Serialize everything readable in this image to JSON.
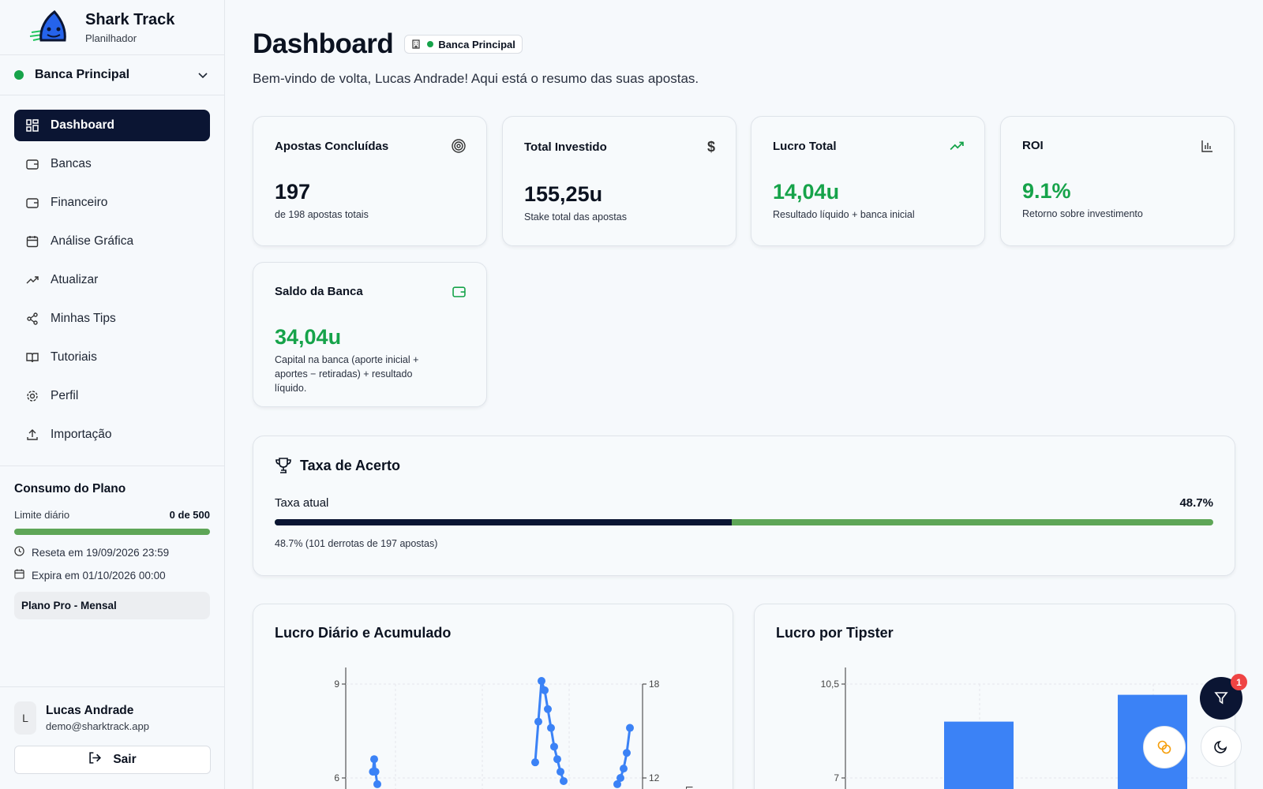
{
  "brand": {
    "name": "Shark Track",
    "subtitle": "Planilhador"
  },
  "bank_selector": {
    "label": "Banca Principal",
    "status_color": "#16a34a"
  },
  "nav": {
    "items": [
      {
        "label": "Dashboard",
        "icon": "grid-icon",
        "active": true
      },
      {
        "label": "Bancas",
        "icon": "wallet-icon"
      },
      {
        "label": "Financeiro",
        "icon": "wallet-icon"
      },
      {
        "label": "Análise Gráfica",
        "icon": "calendar-icon"
      },
      {
        "label": "Atualizar",
        "icon": "trending-up-icon"
      },
      {
        "label": "Minhas Tips",
        "icon": "share-icon"
      },
      {
        "label": "Tutoriais",
        "icon": "book-icon"
      },
      {
        "label": "Perfil",
        "icon": "gear-icon"
      },
      {
        "label": "Importação",
        "icon": "upload-icon"
      }
    ]
  },
  "plan": {
    "title": "Consumo do Plano",
    "limit_label": "Limite diário",
    "limit_value": "0 de 500",
    "reset_text": "Reseta em 19/09/2026 23:59",
    "expire_text": "Expira em 01/10/2026 00:00",
    "plan_name": "Plano Pro - Mensal"
  },
  "user": {
    "initial": "L",
    "name": "Lucas Andrade",
    "email": "demo@sharktrack.app",
    "logout_label": "Sair"
  },
  "header": {
    "title": "Dashboard",
    "bank_chip": "Banca Principal",
    "welcome": "Bem-vindo de volta, Lucas Andrade! Aqui está o resumo das suas apostas."
  },
  "stats": [
    {
      "title": "Apostas Concluídas",
      "value": "197",
      "desc": "de 198 apostas totais",
      "icon": "target-icon",
      "green": false
    },
    {
      "title": "Total Investido",
      "value": "155,25u",
      "desc": "Stake total das apostas",
      "icon": "dollar-icon",
      "green": false
    },
    {
      "title": "Lucro Total",
      "value": "14,04u",
      "desc": "Resultado líquido + banca inicial",
      "icon": "trending-up-icon",
      "green": true
    },
    {
      "title": "ROI",
      "value": "9.1%",
      "desc": "Retorno sobre investimento",
      "icon": "bar-chart-icon",
      "green": true
    },
    {
      "title": "Saldo da Banca",
      "value": "34,04u",
      "desc": "Capital na banca (aporte inicial + aportes − retiradas) + resultado líquido.",
      "icon": "wallet-icon",
      "green": true
    }
  ],
  "hit_rate": {
    "title": "Taxa de Acerto",
    "label": "Taxa atual",
    "value_text": "48.7%",
    "fraction": 0.487,
    "note": "48.7% (101 derrotas de 197 apostas)"
  },
  "chart_data": [
    {
      "type": "line",
      "title": "Lucro Diário e Acumulado",
      "left_axis_ticks": [
        "9",
        "6"
      ],
      "right_axis_ticks": [
        "18",
        "12"
      ],
      "right_axis_label": "Lucr",
      "series": [
        {
          "points": [
            [
              0.43,
              6.2
            ],
            [
              0.45,
              6.6
            ],
            [
              0.47,
              6.2
            ],
            [
              0.5,
              5.8
            ]
          ]
        },
        {
          "points": [
            [
              3.0,
              6.5
            ],
            [
              3.05,
              7.8
            ],
            [
              3.1,
              9.1
            ],
            [
              3.15,
              8.8
            ],
            [
              3.2,
              8.2
            ],
            [
              3.25,
              7.6
            ],
            [
              3.3,
              7.0
            ],
            [
              3.35,
              6.6
            ],
            [
              3.4,
              6.2
            ],
            [
              3.45,
              5.9
            ]
          ]
        },
        {
          "points": [
            [
              4.3,
              5.8
            ],
            [
              4.35,
              6.0
            ],
            [
              4.4,
              6.3
            ],
            [
              4.45,
              6.8
            ],
            [
              4.5,
              7.6
            ]
          ]
        }
      ]
    },
    {
      "type": "bar",
      "title": "Lucro por Tipster",
      "y_ticks": [
        "10,5",
        "7"
      ],
      "categories": [
        "",
        ""
      ],
      "values": [
        9.1,
        10.1
      ],
      "ylim": [
        6,
        10.5
      ]
    }
  ],
  "fabs": {
    "filter_badge": "1"
  },
  "colors": {
    "navy": "#0b1533",
    "green": "#16a34a",
    "bar_green": "#5ea657",
    "chart_blue": "#3b82f6",
    "badge_red": "#ef4444"
  }
}
